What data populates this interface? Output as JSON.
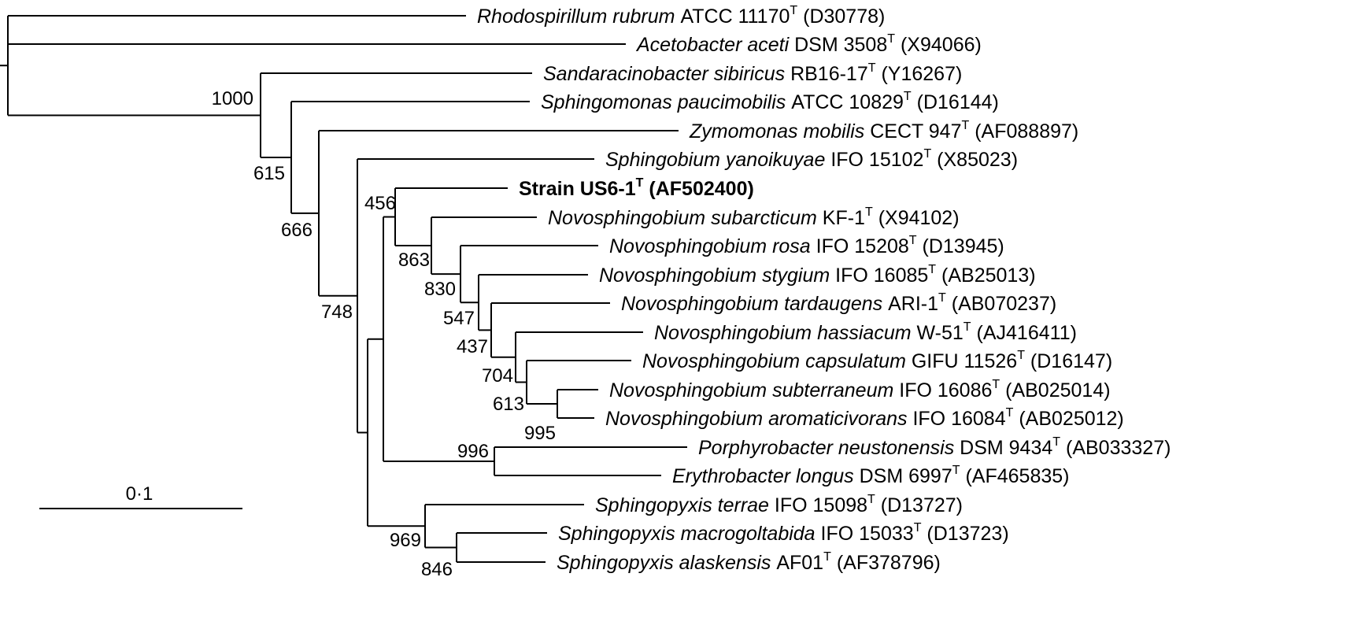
{
  "taxa": [
    {
      "id": "rhodo",
      "species": "Rhodospirillum rubrum",
      "strain": "ATCC 11170",
      "accession": "(D30778)"
    },
    {
      "id": "aceto",
      "species": "Acetobacter aceti",
      "strain": "DSM 3508",
      "accession": "(X94066)"
    },
    {
      "id": "sand",
      "species": "Sandaracinobacter sibiricus",
      "strain": "RB16-17",
      "accession": "(Y16267)"
    },
    {
      "id": "sphpau",
      "species": "Sphingomonas paucimobilis",
      "strain": "ATCC 10829",
      "accession": "(D16144)"
    },
    {
      "id": "zymo",
      "species": "Zymomonas mobilis",
      "strain": "CECT 947",
      "accession": "(AF088897)"
    },
    {
      "id": "sphyan",
      "species": "Sphingobium yanoikuyae",
      "strain": "IFO 15102",
      "accession": "(X85023)"
    },
    {
      "id": "us6",
      "species": "",
      "strain": "Strain US6-1",
      "accession": "(AF502400)",
      "bold": true
    },
    {
      "id": "nsubarc",
      "species": "Novosphingobium subarcticum",
      "strain": "KF-1",
      "accession": "(X94102)"
    },
    {
      "id": "nrosa",
      "species": "Novosphingobium rosa",
      "strain": "IFO 15208",
      "accession": "(D13945)"
    },
    {
      "id": "nstyg",
      "species": "Novosphingobium stygium",
      "strain": "IFO 16085",
      "accession": "(AB25013)"
    },
    {
      "id": "ntard",
      "species": "Novosphingobium tardaugens",
      "strain": "ARI-1",
      "accession": "(AB070237)"
    },
    {
      "id": "nhass",
      "species": "Novosphingobium hassiacum",
      "strain": "W-51",
      "accession": "(AJ416411)"
    },
    {
      "id": "ncaps",
      "species": "Novosphingobium capsulatum",
      "strain": "GIFU 11526",
      "accession": "(D16147)"
    },
    {
      "id": "nsubter",
      "species": "Novosphingobium subterraneum",
      "strain": "IFO 16086",
      "accession": "(AB025014)"
    },
    {
      "id": "narom",
      "species": "Novosphingobium aromaticivorans",
      "strain": "IFO 16084",
      "accession": "(AB025012)"
    },
    {
      "id": "porph",
      "species": "Porphyrobacter neustonensis",
      "strain": "DSM 9434",
      "accession": "(AB033327)"
    },
    {
      "id": "eryth",
      "species": "Erythrobacter longus",
      "strain": "DSM 6997",
      "accession": "(AF465835)"
    },
    {
      "id": "spterr",
      "species": "Sphingopyxis terrae",
      "strain": "IFO 15098",
      "accession": "(D13727)"
    },
    {
      "id": "spmacro",
      "species": "Sphingopyxis macrogoltabida",
      "strain": "IFO 15033",
      "accession": "(D13723)"
    },
    {
      "id": "spalas",
      "species": "Sphingopyxis alaskensis",
      "strain": "AF01",
      "accession": "(AF378796)"
    }
  ],
  "type_marker": "T",
  "bootstrap": {
    "n1000": "1000",
    "n615": "615",
    "n666": "666",
    "n748": "748",
    "n456": "456",
    "n863": "863",
    "n830": "830",
    "n547": "547",
    "n437": "437",
    "n704": "704",
    "n613": "613",
    "n995": "995",
    "n996": "996",
    "n969": "969",
    "n846": "846"
  },
  "scale_bar": {
    "label": "0·1",
    "value": 0.1
  }
}
